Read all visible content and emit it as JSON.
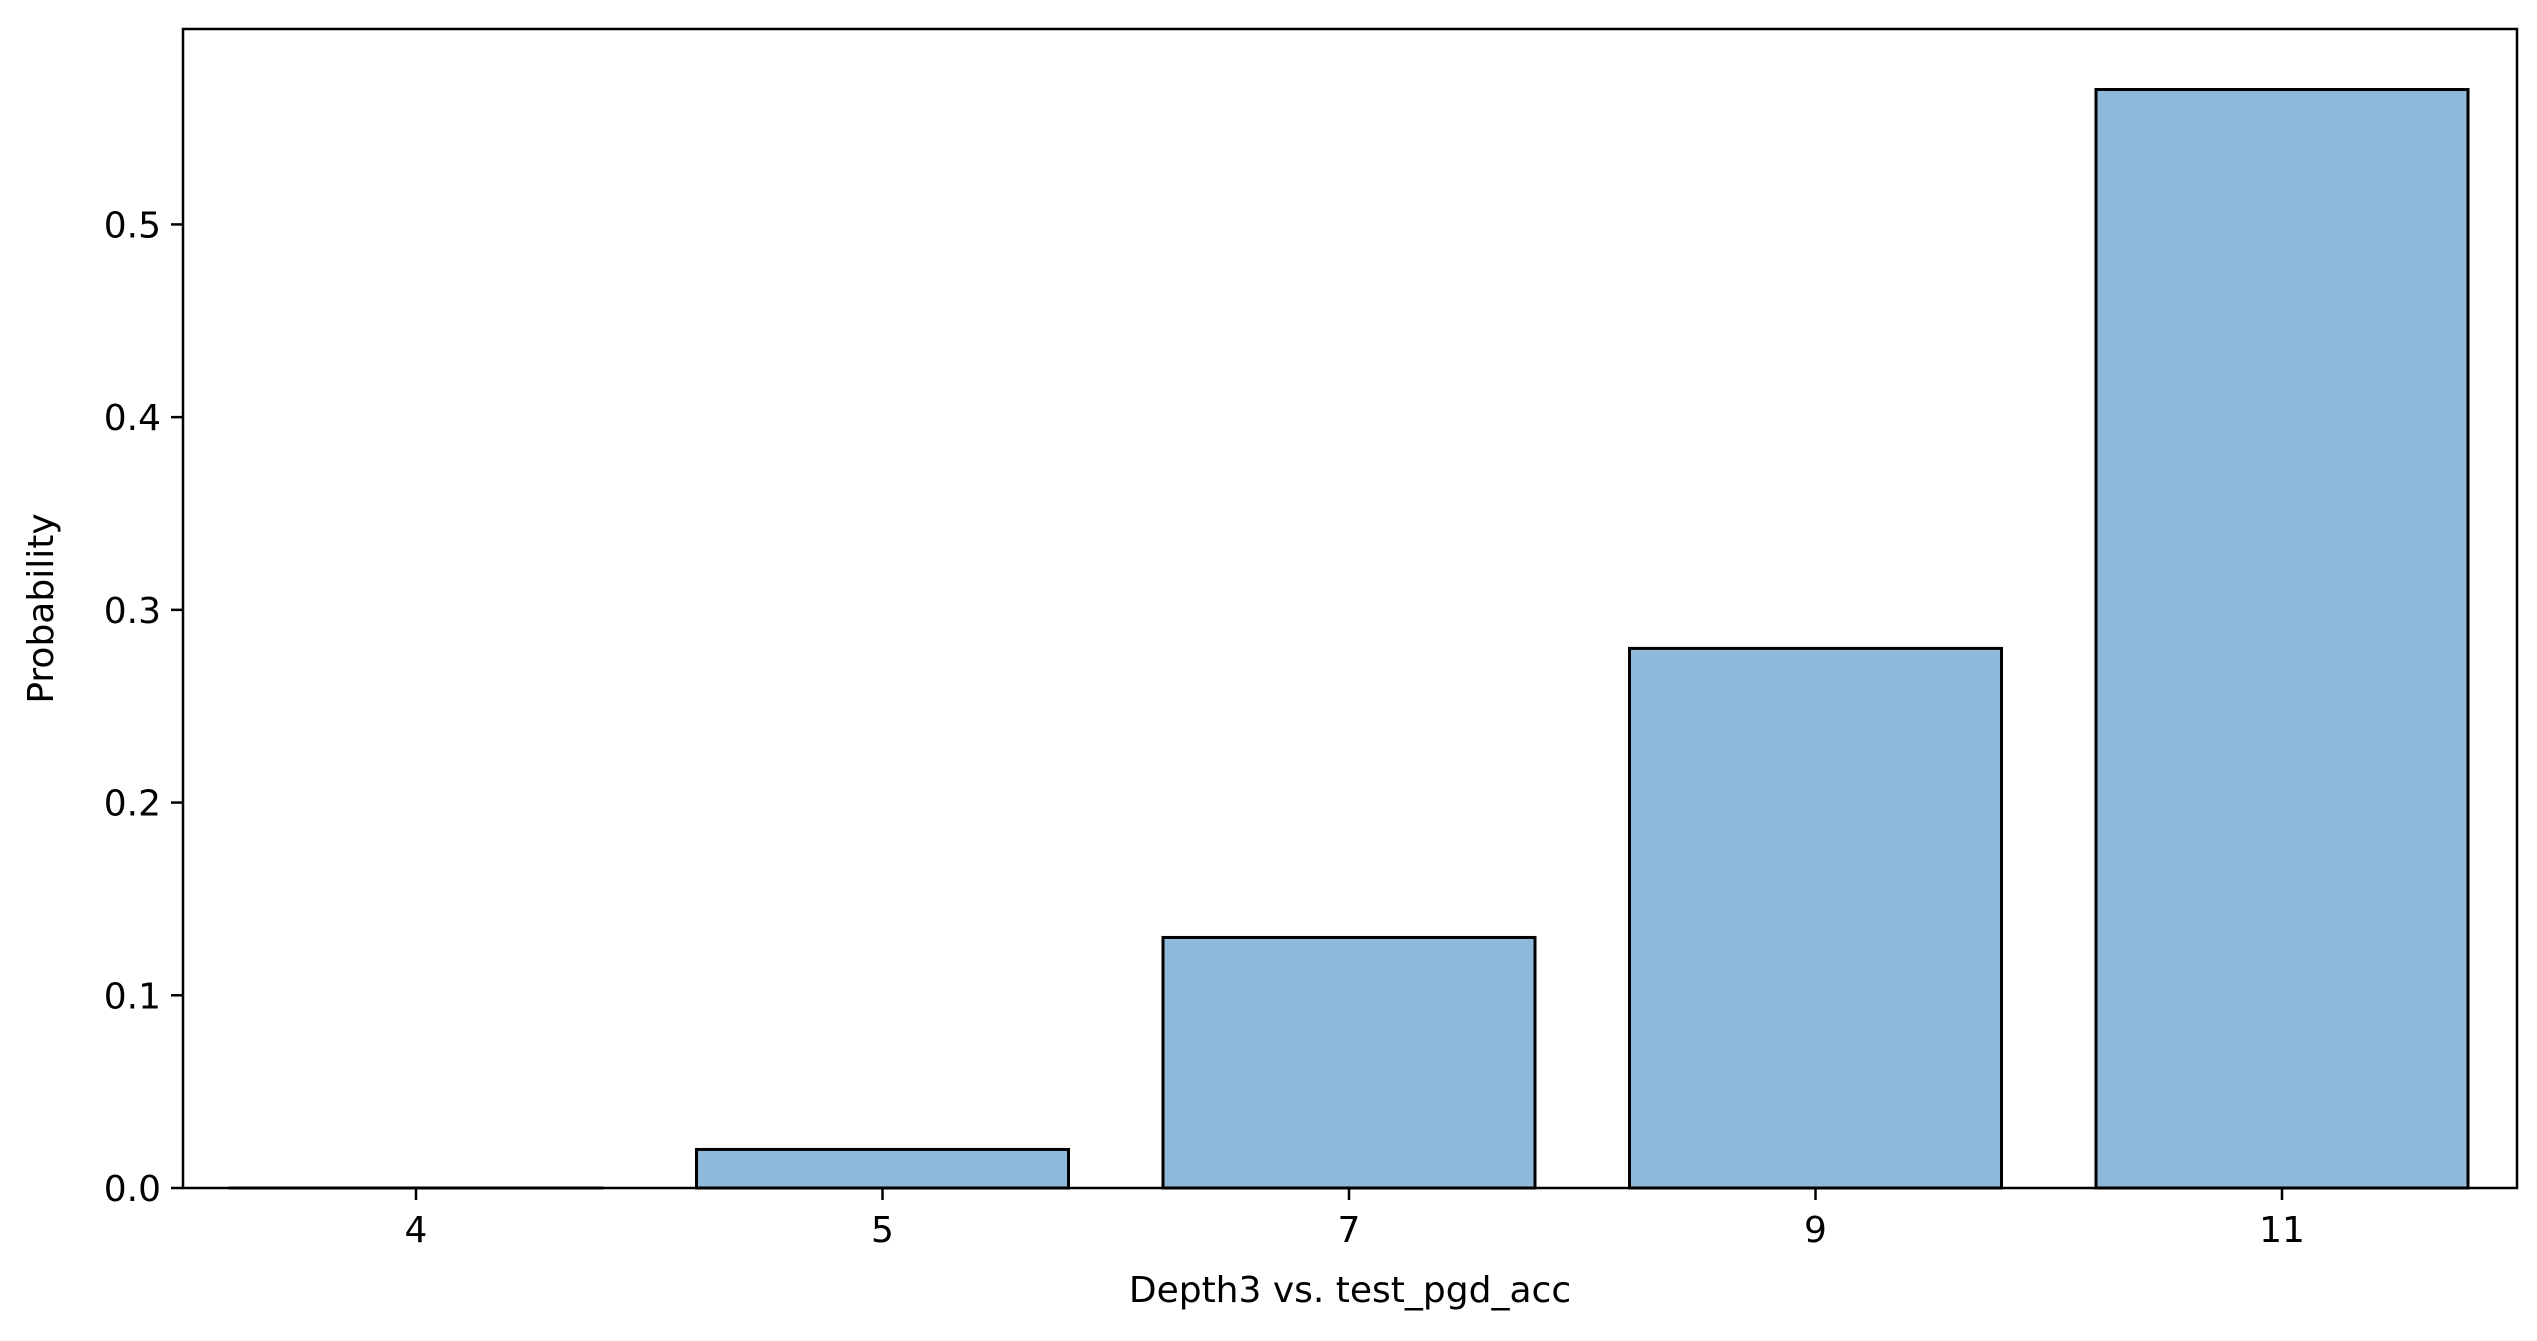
{
  "chart_data": {
    "type": "bar",
    "categories": [
      "4",
      "5",
      "7",
      "9",
      "11"
    ],
    "values": [
      0.0,
      0.02,
      0.13,
      0.28,
      0.57
    ],
    "title": "",
    "xlabel": "Depth3 vs. test_pgd_acc",
    "ylabel": "Probability",
    "ylim": [
      0,
      0.6
    ],
    "yticks": [
      "0.0",
      "0.1",
      "0.2",
      "0.3",
      "0.4",
      "0.5"
    ],
    "grid": false,
    "legend": "none",
    "bar_color": "#8fb9da",
    "edge_color": "#000000"
  }
}
